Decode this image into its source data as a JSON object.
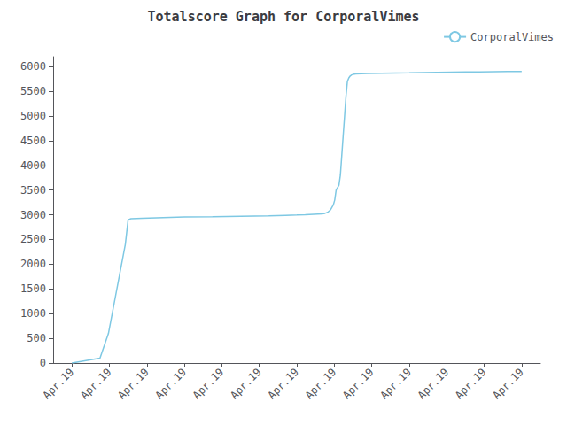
{
  "chart_data": {
    "type": "line",
    "title": "Totalscore Graph for CorporalVimes",
    "x": [
      0,
      0.375,
      0.75,
      0.975,
      1.125,
      1.275,
      1.425,
      1.5,
      1.575,
      1.875,
      2.25,
      3,
      3.75,
      4.125,
      4.5,
      4.875,
      5.25,
      5.475,
      5.7,
      6,
      6.225,
      6.45,
      6.675,
      6.75,
      6.825,
      6.9,
      6.9375,
      6.975,
      7.0125,
      7.05,
      7.0875,
      7.125,
      7.1625,
      7.2,
      7.2375,
      7.275,
      7.3125,
      7.35,
      7.3875,
      7.425,
      7.4625,
      7.5,
      7.575,
      7.725,
      7.875,
      8.25,
      8.625,
      9,
      9.375,
      9.75,
      10.125,
      10.5,
      10.875,
      11.25,
      11.625,
      12
    ],
    "series": [
      {
        "name": "CorporalVimes",
        "color": "#7ec8e3",
        "values": [
          0,
          50,
          100,
          600,
          1200,
          1800,
          2400,
          2900,
          2920,
          2930,
          2940,
          2955,
          2960,
          2965,
          2970,
          2975,
          2980,
          2985,
          2990,
          2995,
          3000,
          3010,
          3020,
          3030,
          3050,
          3100,
          3150,
          3200,
          3300,
          3500,
          3550,
          3600,
          3800,
          4200,
          4600,
          5000,
          5400,
          5700,
          5770,
          5810,
          5830,
          5840,
          5850,
          5855,
          5860,
          5865,
          5868,
          5872,
          5878,
          5882,
          5887,
          5890,
          5892,
          5895,
          5898,
          5900
        ]
      }
    ],
    "xlim": [
      -0.5,
      12.5
    ],
    "xticks": [
      {
        "value": 0,
        "label": "Apr.19"
      },
      {
        "value": 1,
        "label": "Apr.19"
      },
      {
        "value": 2,
        "label": "Apr.19"
      },
      {
        "value": 3,
        "label": "Apr.19"
      },
      {
        "value": 4,
        "label": "Apr.19"
      },
      {
        "value": 5,
        "label": "Apr.19"
      },
      {
        "value": 6,
        "label": "Apr.19"
      },
      {
        "value": 7,
        "label": "Apr.19"
      },
      {
        "value": 8,
        "label": "Apr.19"
      },
      {
        "value": 9,
        "label": "Apr.19"
      },
      {
        "value": 10,
        "label": "Apr.19"
      },
      {
        "value": 11,
        "label": "Apr.19"
      },
      {
        "value": 12,
        "label": "Apr.19"
      }
    ],
    "ylim": [
      0,
      6200
    ],
    "yticks": [
      0,
      500,
      1000,
      1500,
      2000,
      2500,
      3000,
      3500,
      4000,
      4500,
      5000,
      5500,
      6000
    ],
    "grid": false,
    "legend": "upper right"
  }
}
